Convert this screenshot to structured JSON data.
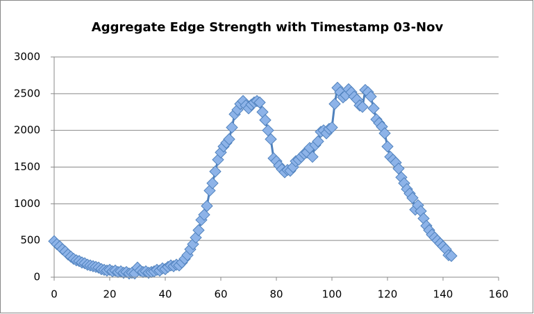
{
  "chart_data": {
    "type": "line",
    "title": "Aggregate Edge Strength with Timestamp 03-Nov",
    "x": [
      0,
      1,
      2,
      3,
      4,
      5,
      6,
      7,
      8,
      9,
      10,
      11,
      12,
      13,
      14,
      15,
      16,
      17,
      18,
      19,
      20,
      21,
      22,
      23,
      24,
      25,
      26,
      27,
      28,
      29,
      30,
      31,
      32,
      33,
      34,
      35,
      36,
      37,
      38,
      39,
      40,
      41,
      42,
      43,
      44,
      45,
      46,
      47,
      48,
      49,
      50,
      51,
      52,
      53,
      54,
      55,
      56,
      57,
      58,
      59,
      60,
      61,
      62,
      63,
      64,
      65,
      66,
      67,
      68,
      69,
      70,
      71,
      72,
      73,
      74,
      75,
      76,
      77,
      78,
      79,
      80,
      81,
      82,
      83,
      84,
      85,
      86,
      87,
      88,
      89,
      90,
      91,
      92,
      93,
      94,
      95,
      96,
      97,
      98,
      99,
      100,
      101,
      102,
      103,
      104,
      105,
      106,
      107,
      108,
      109,
      110,
      111,
      112,
      113,
      114,
      115,
      116,
      117,
      118,
      119,
      120,
      121,
      122,
      123,
      124,
      125,
      126,
      127,
      128,
      129,
      130,
      131,
      132,
      133,
      134,
      135,
      136,
      137,
      138,
      139,
      140,
      141,
      142,
      143
    ],
    "values": [
      490,
      450,
      420,
      380,
      350,
      310,
      280,
      250,
      230,
      220,
      200,
      190,
      170,
      160,
      150,
      140,
      130,
      110,
      100,
      90,
      100,
      80,
      90,
      70,
      80,
      60,
      70,
      50,
      60,
      50,
      130,
      90,
      70,
      80,
      60,
      70,
      80,
      100,
      90,
      120,
      110,
      140,
      160,
      150,
      170,
      160,
      200,
      250,
      300,
      380,
      450,
      540,
      640,
      780,
      850,
      970,
      1180,
      1280,
      1440,
      1600,
      1700,
      1780,
      1830,
      1880,
      2040,
      2220,
      2280,
      2360,
      2400,
      2340,
      2300,
      2350,
      2380,
      2400,
      2380,
      2250,
      2140,
      2000,
      1880,
      1620,
      1580,
      1520,
      1470,
      1430,
      1460,
      1450,
      1500,
      1580,
      1600,
      1640,
      1680,
      1700,
      1760,
      1640,
      1800,
      1850,
      1980,
      2000,
      1960,
      2020,
      2040,
      2360,
      2580,
      2520,
      2450,
      2480,
      2560,
      2520,
      2460,
      2420,
      2340,
      2320,
      2550,
      2520,
      2460,
      2300,
      2150,
      2100,
      2050,
      1960,
      1780,
      1640,
      1600,
      1560,
      1480,
      1360,
      1280,
      1200,
      1140,
      1080,
      920,
      980,
      900,
      800,
      700,
      640,
      580,
      540,
      500,
      460,
      420,
      380,
      300,
      290
    ],
    "color": "#4f81bd",
    "xlim": [
      0,
      160
    ],
    "xticks": [
      0,
      20,
      40,
      60,
      80,
      100,
      120,
      140,
      160
    ],
    "ylim": [
      0,
      3000
    ],
    "yticks": [
      0,
      500,
      1000,
      1500,
      2000,
      2500,
      3000
    ],
    "grid": true
  }
}
